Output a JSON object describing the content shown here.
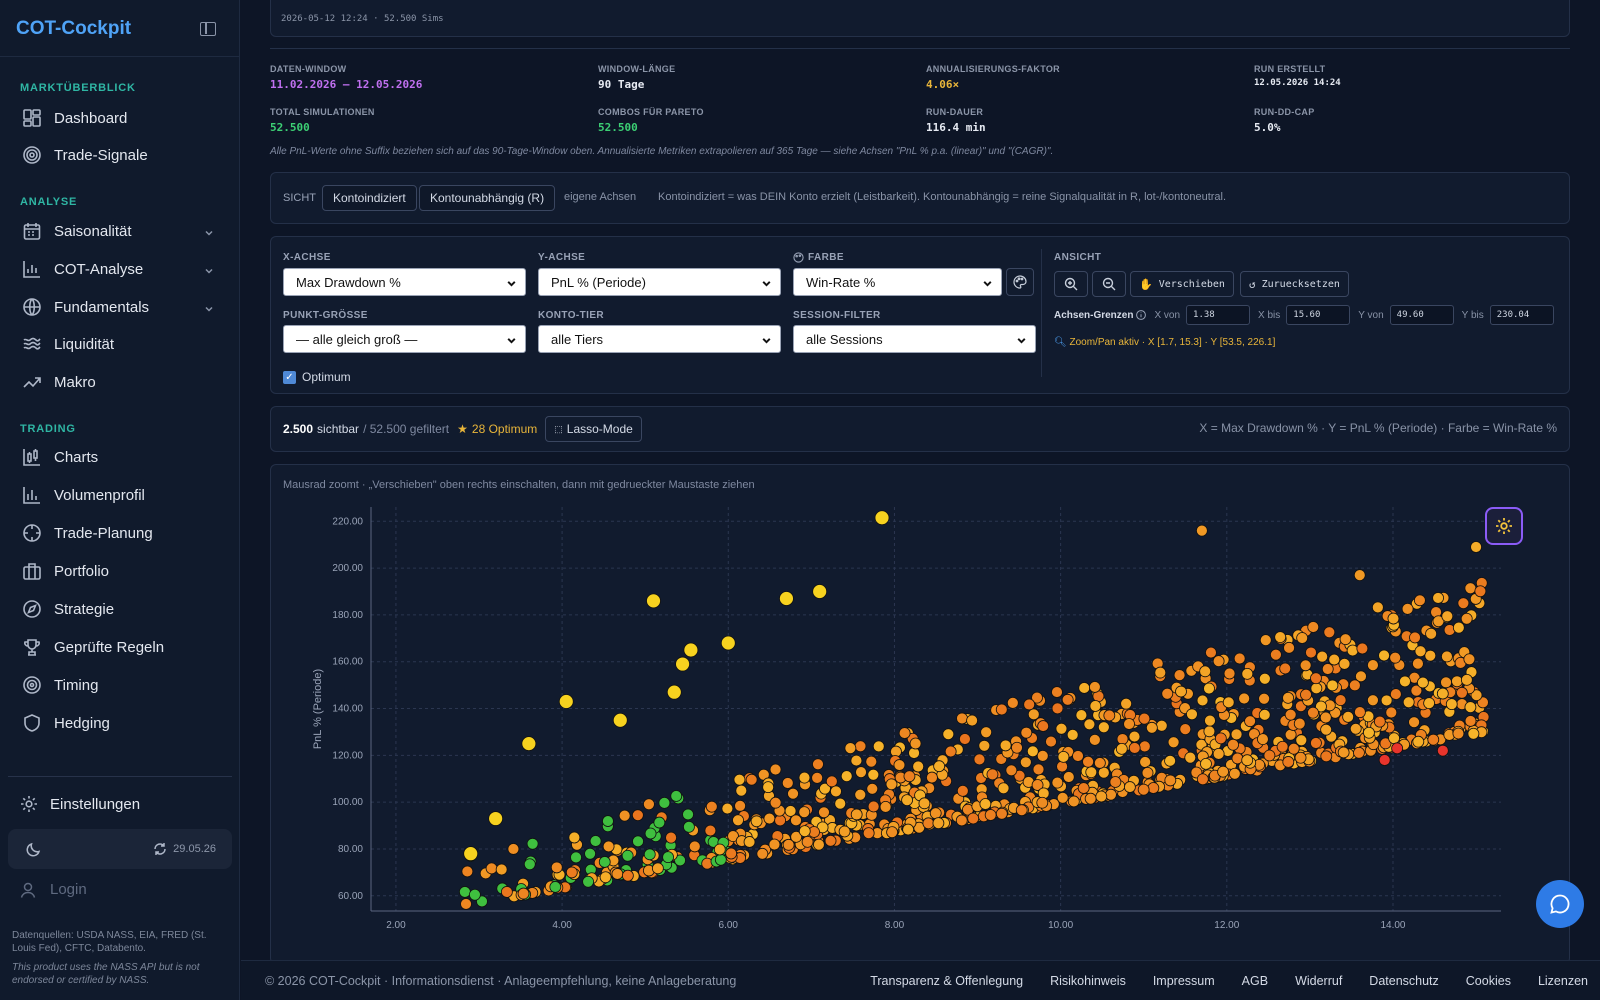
{
  "app": {
    "brand": "COT-Cockpit"
  },
  "sidebar": {
    "sections": [
      {
        "label": "MARKTÜBERBLICK",
        "items": [
          {
            "label": "Dashboard",
            "icon": "dashboard-icon"
          },
          {
            "label": "Trade-Signale",
            "icon": "target-icon"
          }
        ]
      },
      {
        "label": "ANALYSE",
        "items": [
          {
            "label": "Saisonalität",
            "icon": "calendar-icon",
            "expandable": true
          },
          {
            "label": "COT-Analyse",
            "icon": "bar-chart-icon",
            "expandable": true
          },
          {
            "label": "Fundamentals",
            "icon": "globe-icon",
            "expandable": true
          },
          {
            "label": "Liquidität",
            "icon": "waves-icon"
          },
          {
            "label": "Makro",
            "icon": "trending-up-icon"
          }
        ]
      },
      {
        "label": "TRADING",
        "items": [
          {
            "label": "Charts",
            "icon": "candlestick-icon"
          },
          {
            "label": "Volumenprofil",
            "icon": "volume-icon"
          },
          {
            "label": "Trade-Planung",
            "icon": "crosshair-icon"
          },
          {
            "label": "Portfolio",
            "icon": "briefcase-icon"
          },
          {
            "label": "Strategie",
            "icon": "compass-icon"
          },
          {
            "label": "Geprüfte Regeln",
            "icon": "trophy-icon"
          },
          {
            "label": "Timing",
            "icon": "timing-icon"
          },
          {
            "label": "Hedging",
            "icon": "shield-icon"
          }
        ]
      }
    ],
    "settings_label": "Einstellungen",
    "sync_date": "29.05.26",
    "login_label": "Login",
    "sources": "Datenquellen: USDA NASS, EIA, FRED (St. Louis Fed), CFTC, Databento.",
    "disclaimer": "This product uses the NASS API but is not endorsed or certified by NASS."
  },
  "run": {
    "meta": "2026-05-12 12:24 · 52.500 Sims",
    "stats": [
      {
        "label": "DATEN-WINDOW",
        "value": "11.02.2026 – 12.05.2026",
        "color": "#c070f0"
      },
      {
        "label": "WINDOW-LÄNGE",
        "value": "90 Tage",
        "color": "#e6eaf2"
      },
      {
        "label": "ANNUALISIERUNGS-FAKTOR",
        "value": "4.06×",
        "color": "#e8b53a"
      },
      {
        "label": "RUN ERSTELLT",
        "value": "12.05.2026 14:24",
        "color": "#e6eaf2"
      },
      {
        "label": "TOTAL SIMULATIONEN",
        "value": "52.500",
        "color": "#3ccf74"
      },
      {
        "label": "COMBOS FÜR PARETO",
        "value": "52.500",
        "color": "#3ccf74"
      },
      {
        "label": "RUN-DAUER",
        "value": "116.4 min",
        "color": "#e6eaf2"
      },
      {
        "label": "RUN-DD-CAP",
        "value": "5.0%",
        "color": "#e6eaf2"
      }
    ],
    "note": "Alle PnL-Werte ohne Suffix beziehen sich auf das 90-Tage-Window oben. Annualisierte Metriken extrapolieren auf 365 Tage — siehe Achsen \"PnL % p.a. (linear)\" und \"(CAGR)\"."
  },
  "sicht": {
    "label": "SICHT",
    "options": [
      "Kontoindiziert",
      "Kontounabhängig (R)"
    ],
    "extra": "eigene Achsen",
    "explain": "Kontoindiziert = was DEIN Konto erzielt (Leistbarkeit). Kontounabhängig = reine Signalqualität in R, lot-/kontoneutral."
  },
  "controls": {
    "x_label": "X-ACHSE",
    "x_value": "Max Drawdown %",
    "y_label": "Y-ACHSE",
    "y_value": "PnL % (Periode)",
    "color_label": "FARBE",
    "color_value": "Win-Rate %",
    "size_label": "PUNKT-GRÖSSE",
    "size_value": "— alle gleich groß —",
    "tier_label": "KONTO-TIER",
    "tier_value": "alle Tiers",
    "session_label": "SESSION-FILTER",
    "session_value": "alle Sessions",
    "view_label": "ANSICHT",
    "pan_label": "Verschieben",
    "reset_label": "Zuruecksetzen",
    "limits_label": "Achsen-Grenzen",
    "x_from_label": "X von",
    "x_from": "1.38",
    "x_to_label": "X bis",
    "x_to": "15.60",
    "y_from_label": "Y von",
    "y_from": "49.60",
    "y_to_label": "Y bis",
    "y_to": "230.04",
    "zoom_info": "Zoom/Pan aktiv · X [1.7, 15.3] · Y [53.5, 226.1]",
    "optimum_label": "Optimum"
  },
  "counts": {
    "visible": "2.500",
    "visible_label": "sichtbar",
    "filtered": "/ 52.500 gefiltert",
    "optimum": "28 Optimum",
    "lasso_label": "Lasso-Mode",
    "axis_desc": "X = Max Drawdown % · Y = PnL % (Periode) · Farbe = Win-Rate %"
  },
  "chart": {
    "hint": "Mausrad zoomt · „Verschieben\" oben rechts einschalten, dann mit gedrueckter Maustaste ziehen"
  },
  "chart_data": {
    "type": "scatter",
    "title": "",
    "xlabel": "",
    "ylabel": "PnL % (Periode)",
    "xlim": [
      1.7,
      15.3
    ],
    "ylim": [
      53.5,
      226.1
    ],
    "x_ticks": [
      "2.00",
      "4.00",
      "6.00",
      "8.00",
      "10.00",
      "12.00",
      "14.00"
    ],
    "y_ticks": [
      "60.00",
      "80.00",
      "100.00",
      "120.00",
      "140.00",
      "160.00",
      "180.00",
      "200.00",
      "220.00"
    ],
    "grid": true,
    "color_metric": "Win-Rate %",
    "palette": {
      "low": "#e8342c",
      "mid": "#f5a623",
      "high": "#3fbf3f",
      "top": "#f7d21f"
    },
    "highlight_points": [
      {
        "x": 7.85,
        "y": 221.5,
        "winrate": 0.8
      },
      {
        "x": 5.1,
        "y": 186,
        "winrate": 0.8
      },
      {
        "x": 6.7,
        "y": 187,
        "winrate": 0.8
      },
      {
        "x": 7.1,
        "y": 190,
        "winrate": 0.8
      },
      {
        "x": 6.0,
        "y": 168,
        "winrate": 0.8
      },
      {
        "x": 5.55,
        "y": 165,
        "winrate": 0.8
      },
      {
        "x": 5.45,
        "y": 159,
        "winrate": 0.8
      },
      {
        "x": 5.35,
        "y": 147,
        "winrate": 0.8
      },
      {
        "x": 4.05,
        "y": 143,
        "winrate": 0.8
      },
      {
        "x": 3.6,
        "y": 125,
        "winrate": 0.8
      },
      {
        "x": 3.2,
        "y": 93,
        "winrate": 0.8
      },
      {
        "x": 2.9,
        "y": 78,
        "winrate": 0.8
      },
      {
        "x": 4.7,
        "y": 135,
        "winrate": 0.9
      },
      {
        "x": 15.0,
        "y": 209,
        "winrate": 0.55
      },
      {
        "x": 11.7,
        "y": 216,
        "winrate": 0.45
      },
      {
        "x": 13.6,
        "y": 197,
        "winrate": 0.45
      },
      {
        "x": 14.6,
        "y": 122,
        "winrate": 0.1
      },
      {
        "x": 13.9,
        "y": 118,
        "winrate": 0.1
      },
      {
        "x": 14.05,
        "y": 123,
        "winrate": 0.1
      }
    ],
    "cloud": {
      "count": 2500,
      "x_range": [
        2.8,
        15.1
      ],
      "y_floor_at_x_min": 56,
      "y_floor_at_x_max": 130,
      "y_spread": 45
    }
  },
  "footer": {
    "copyright": "© 2026 COT-Cockpit · Informationsdienst · Anlageempfehlung, keine Anlageberatung",
    "links": [
      "Transparenz & Offenlegung",
      "Risikohinweis",
      "Impressum",
      "AGB",
      "Widerruf",
      "Datenschutz",
      "Cookies",
      "Lizenzen"
    ]
  }
}
